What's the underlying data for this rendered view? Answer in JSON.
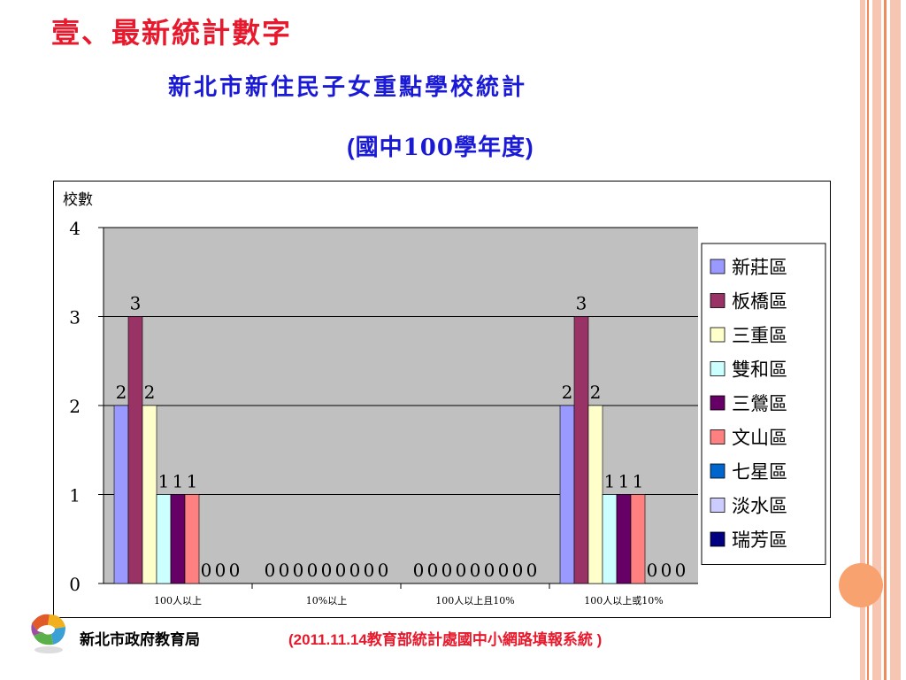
{
  "slide": {
    "heading": "壹、最新統計數字",
    "subtitle": "新北市新住民子女重點學校統計",
    "year_label": {
      "open": "(",
      "text": "國中100學年度",
      "close": ")"
    },
    "footer_org": "新北市政府教育局",
    "footer_source": "(2011.11.14教育部統計處國中小網路填報系統 )"
  },
  "colors": {
    "heading": "#e8192c",
    "subtitle": "#1a1ad6",
    "source": "#e8192c",
    "plot_bg": "#c0c0c0",
    "stripe_pink": "#f6c6b3",
    "stripe_orange": "#f08b5c",
    "accent": "#f7a26f"
  },
  "chart_data": {
    "type": "bar",
    "ylabel": "校數",
    "ylim": [
      0,
      4
    ],
    "yticks": [
      "0",
      "1",
      "2",
      "3",
      "4"
    ],
    "grid": true,
    "legend_position": "right",
    "categories": [
      "100人以上",
      "10%以上",
      "100人以上且10%",
      "100人以上或10%"
    ],
    "series": [
      {
        "name": "新莊區",
        "color": "#9999ff",
        "values": [
          2,
          0,
          0,
          2
        ]
      },
      {
        "name": "板橋區",
        "color": "#993366",
        "values": [
          3,
          0,
          0,
          3
        ]
      },
      {
        "name": "三重區",
        "color": "#ffffcc",
        "values": [
          2,
          0,
          0,
          2
        ]
      },
      {
        "name": "雙和區",
        "color": "#ccffff",
        "values": [
          1,
          0,
          0,
          1
        ]
      },
      {
        "name": "三鶯區",
        "color": "#660066",
        "values": [
          1,
          0,
          0,
          1
        ]
      },
      {
        "name": "文山區",
        "color": "#ff8080",
        "values": [
          1,
          0,
          0,
          1
        ]
      },
      {
        "name": "七星區",
        "color": "#0066cc",
        "values": [
          0,
          0,
          0,
          0
        ]
      },
      {
        "name": "淡水區",
        "color": "#ccccff",
        "values": [
          0,
          0,
          0,
          0
        ]
      },
      {
        "name": "瑞芳區",
        "color": "#000080",
        "values": [
          0,
          0,
          0,
          0
        ]
      }
    ]
  }
}
